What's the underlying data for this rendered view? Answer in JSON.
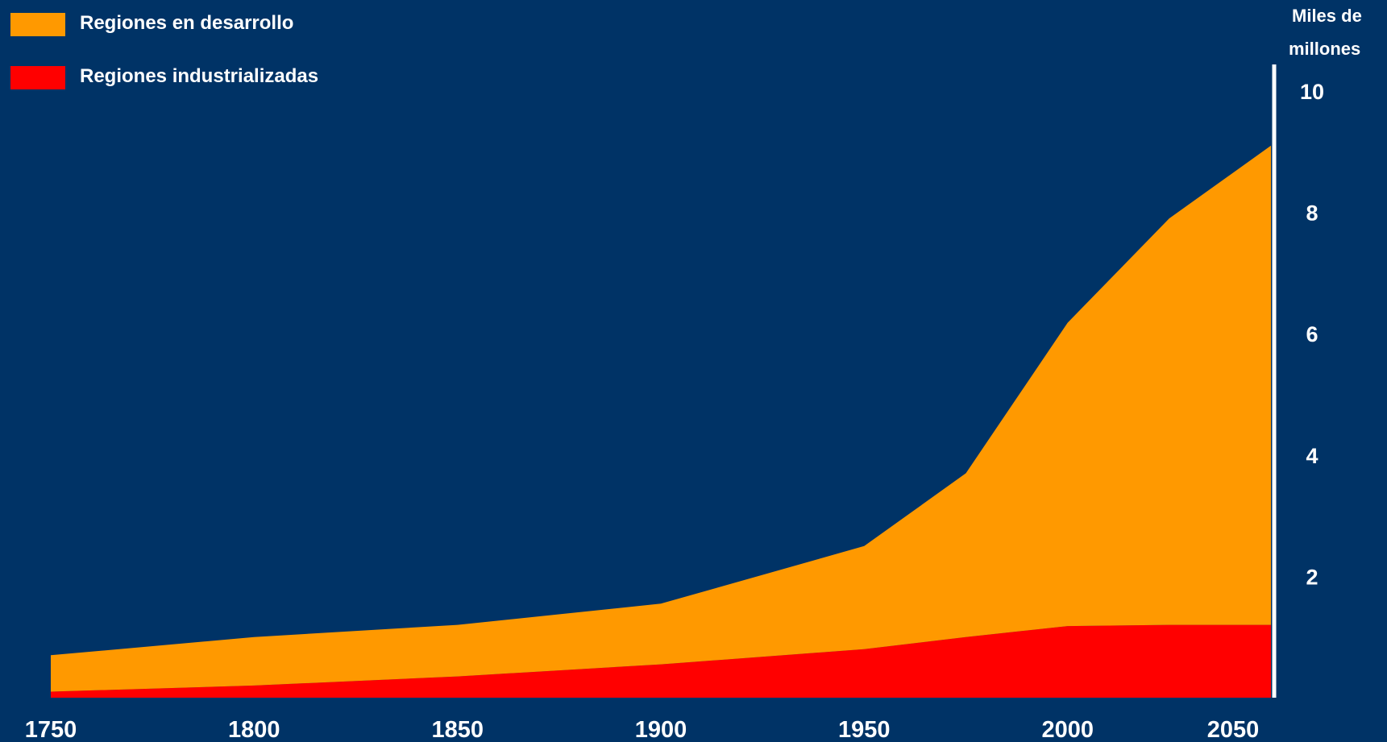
{
  "chart_data": {
    "type": "area",
    "stacked": true,
    "title": "",
    "xlabel": "",
    "ylabel": "Miles de millones",
    "ylabel_lines": [
      "Miles de",
      "millones"
    ],
    "x_ticks": [
      "1750",
      "1800",
      "1850",
      "1900",
      "1950",
      "2000",
      "2050"
    ],
    "y_ticks": [
      "2",
      "4",
      "6",
      "8",
      "10"
    ],
    "x_range": [
      1750,
      2050
    ],
    "y_range": [
      0,
      10
    ],
    "y_axis_side": "right",
    "grid": false,
    "legend_position": "top-left",
    "x": [
      1750,
      1800,
      1850,
      1900,
      1950,
      1975,
      2000,
      2025,
      2050
    ],
    "series": [
      {
        "name": "Regiones industrializadas",
        "color": "#ff0000",
        "values": [
          0.1,
          0.2,
          0.35,
          0.55,
          0.8,
          1.0,
          1.18,
          1.2,
          1.2
        ]
      },
      {
        "name": "Regiones en desarrollo",
        "color": "#ff9900",
        "values": [
          0.6,
          0.8,
          0.85,
          1.0,
          1.7,
          2.7,
          5.0,
          6.7,
          7.9
        ]
      }
    ]
  },
  "legend": [
    {
      "label": "Regiones en desarrollo",
      "color": "#ff9900"
    },
    {
      "label": "Regiones industrializadas",
      "color": "#ff0000"
    }
  ],
  "colors": {
    "background": "#003366",
    "axis": "#ffffff",
    "text": "#ffffff"
  }
}
